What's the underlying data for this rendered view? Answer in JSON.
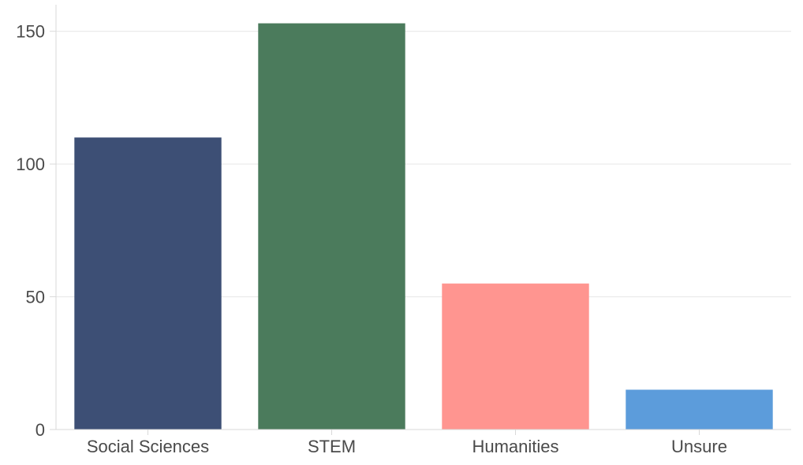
{
  "chart_data": {
    "type": "bar",
    "categories": [
      "Social Sciences",
      "STEM",
      "Humanities",
      "Unsure"
    ],
    "values": [
      110,
      153,
      55,
      15
    ],
    "colors": [
      "#3d4f75",
      "#4b7b5c",
      "#ff9590",
      "#5c9cdb"
    ],
    "ylim": [
      0,
      160
    ],
    "yticks": [
      0,
      50,
      100,
      150
    ],
    "grid": true,
    "title": "",
    "xlabel": "",
    "ylabel": ""
  }
}
